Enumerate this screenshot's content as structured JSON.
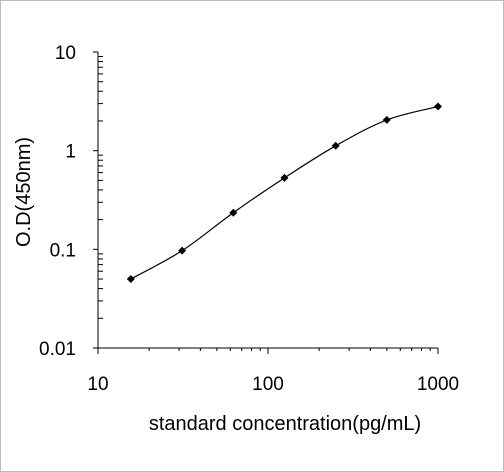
{
  "chart_data": {
    "type": "line",
    "xscale": "log",
    "yscale": "log",
    "xlim": [
      10,
      1000
    ],
    "ylim": [
      0.01,
      10
    ],
    "xticks": [
      "10",
      "100",
      "1000"
    ],
    "yticks": [
      "10",
      "1",
      "0.1",
      "0.01"
    ],
    "xlabel": "standard concentration(pg/mL)",
    "ylabel": "O.D(450nm)",
    "grid": false,
    "legend": "none",
    "colors": {
      "line": "#000000",
      "marker": "#000000",
      "axis": "#000000",
      "frame": "#bdbdbd"
    },
    "series": [
      {
        "x": [
          15.6,
          31.25,
          62.5,
          125,
          250,
          500,
          1000
        ],
        "y": [
          0.05,
          0.097,
          0.235,
          0.53,
          1.12,
          2.05,
          2.8
        ]
      }
    ]
  }
}
